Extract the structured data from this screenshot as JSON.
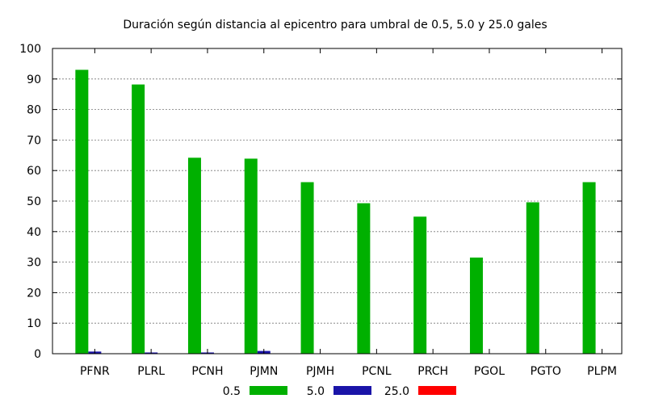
{
  "chart_data": {
    "type": "bar",
    "title": "Duración según distancia al epicentro para umbral de 0.5, 5.0 y 25.0 gales",
    "xlabel": "",
    "ylabel": "",
    "ylim": [
      0,
      100
    ],
    "yticks": [
      0,
      10,
      20,
      30,
      40,
      50,
      60,
      70,
      80,
      90,
      100
    ],
    "grid": true,
    "legend_position": "bottom",
    "categories": [
      "PFNR",
      "PLRL",
      "PCNH",
      "PJMN",
      "PJMH",
      "PCNL",
      "PRCH",
      "PGOL",
      "PGTO",
      "PLPM"
    ],
    "series": [
      {
        "name": "0.5",
        "color": "#00b000",
        "values": [
          93,
          88.2,
          64.2,
          63.9,
          56.2,
          49.3,
          44.9,
          31.5,
          49.6,
          56.2
        ]
      },
      {
        "name": "5.0",
        "color": "#1a14a8",
        "values": [
          0.7,
          0.4,
          0.4,
          0.9,
          0,
          0,
          0,
          0,
          0,
          0
        ]
      },
      {
        "name": "25.0",
        "color": "#ff0000",
        "values": [
          0,
          0,
          0,
          0,
          0,
          0,
          0,
          0,
          0,
          0
        ]
      }
    ]
  }
}
